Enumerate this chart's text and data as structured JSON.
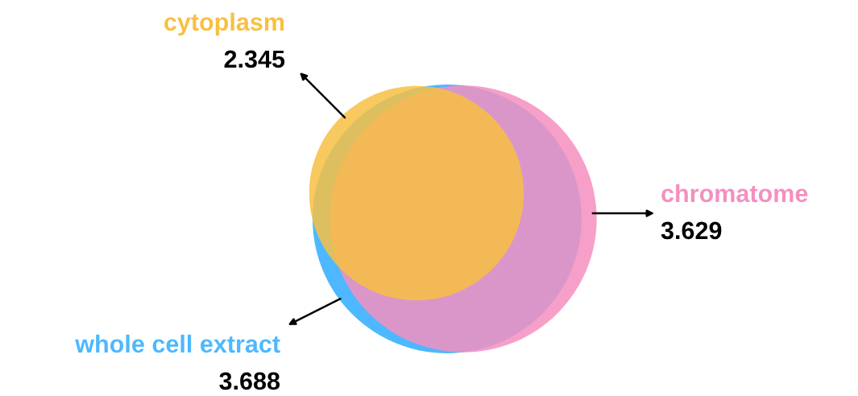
{
  "chart_data": {
    "type": "other",
    "categories": [
      "cytoplasm",
      "chromatome",
      "whole cell extract"
    ],
    "values": [
      2.345,
      3.629,
      3.688
    ],
    "colors": [
      "#f7c043",
      "#f48fc0",
      "#4db8ff"
    ],
    "data_labels": true
  }
}
